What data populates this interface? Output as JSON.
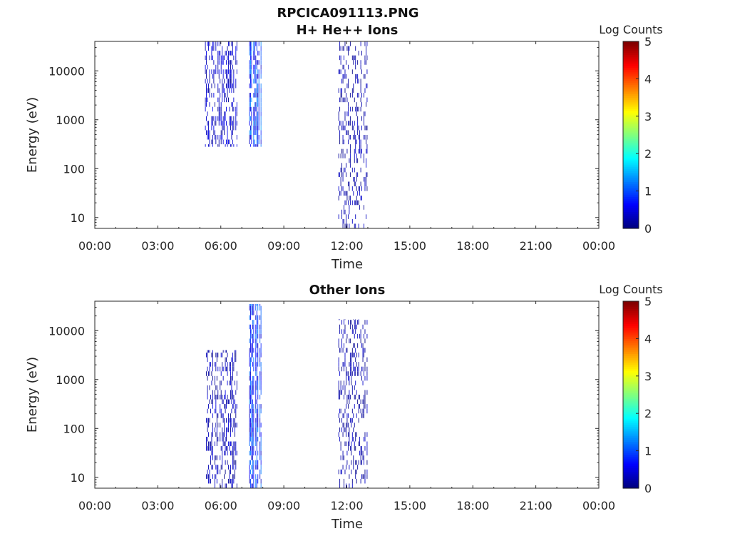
{
  "figure": {
    "title": "RPCICA091113.PNG"
  },
  "colormap": {
    "name": "jet",
    "stops": [
      "#00007f",
      "#0000ff",
      "#007fff",
      "#00ffff",
      "#7fff7f",
      "#ffff00",
      "#ff7f00",
      "#ff0000",
      "#7f0000"
    ]
  },
  "chart_data": [
    {
      "type": "heatmap",
      "title": "H+ He++ Ions",
      "xlabel": "Time",
      "ylabel": "Energy (eV)",
      "colorbar_label": "Log Counts",
      "xlim_hours": [
        0,
        24
      ],
      "xticks": [
        {
          "hour": 0,
          "label": "00:00"
        },
        {
          "hour": 3,
          "label": "03:00"
        },
        {
          "hour": 6,
          "label": "06:00"
        },
        {
          "hour": 9,
          "label": "09:00"
        },
        {
          "hour": 12,
          "label": "12:00"
        },
        {
          "hour": 15,
          "label": "15:00"
        },
        {
          "hour": 18,
          "label": "18:00"
        },
        {
          "hour": 21,
          "label": "21:00"
        },
        {
          "hour": 24,
          "label": "00:00"
        }
      ],
      "ylim_eV": [
        6,
        40000
      ],
      "yscale": "log",
      "yticks": [
        {
          "value": 10,
          "label": "10"
        },
        {
          "value": 100,
          "label": "100"
        },
        {
          "value": 1000,
          "label": "1000"
        },
        {
          "value": 10000,
          "label": "10000"
        }
      ],
      "clim": [
        0,
        5
      ],
      "cticks": [
        {
          "value": 0,
          "label": "0"
        },
        {
          "value": 1,
          "label": "1"
        },
        {
          "value": 2,
          "label": "2"
        },
        {
          "value": 3,
          "label": "3"
        },
        {
          "value": 4,
          "label": "4"
        },
        {
          "value": 5,
          "label": "5"
        }
      ],
      "blocks": [
        {
          "t": [
            5.25,
            6.75
          ],
          "e": [
            280,
            40000
          ],
          "level": [
            0.1,
            0.6
          ],
          "density": 0.45
        },
        {
          "t": [
            7.35,
            7.9
          ],
          "e": [
            280,
            40000
          ],
          "level": [
            0.3,
            1.4
          ],
          "density": 0.8
        },
        {
          "t": [
            11.6,
            13.0
          ],
          "e": [
            6,
            40000
          ],
          "level": [
            0.0,
            0.4
          ],
          "density": 0.3
        }
      ]
    },
    {
      "type": "heatmap",
      "title": "Other Ions",
      "xlabel": "Time",
      "ylabel": "Energy (eV)",
      "colorbar_label": "Log Counts",
      "xlim_hours": [
        0,
        24
      ],
      "xticks": [
        {
          "hour": 0,
          "label": "00:00"
        },
        {
          "hour": 3,
          "label": "03:00"
        },
        {
          "hour": 6,
          "label": "06:00"
        },
        {
          "hour": 9,
          "label": "09:00"
        },
        {
          "hour": 12,
          "label": "12:00"
        },
        {
          "hour": 15,
          "label": "15:00"
        },
        {
          "hour": 18,
          "label": "18:00"
        },
        {
          "hour": 21,
          "label": "21:00"
        },
        {
          "hour": 24,
          "label": "00:00"
        }
      ],
      "ylim_eV": [
        6,
        40000
      ],
      "yscale": "log",
      "yticks": [
        {
          "value": 10,
          "label": "10"
        },
        {
          "value": 100,
          "label": "100"
        },
        {
          "value": 1000,
          "label": "1000"
        },
        {
          "value": 10000,
          "label": "10000"
        }
      ],
      "clim": [
        0,
        5
      ],
      "cticks": [
        {
          "value": 0,
          "label": "0"
        },
        {
          "value": 1,
          "label": "1"
        },
        {
          "value": 2,
          "label": "2"
        },
        {
          "value": 3,
          "label": "3"
        },
        {
          "value": 4,
          "label": "4"
        },
        {
          "value": 5,
          "label": "5"
        }
      ],
      "blocks": [
        {
          "t": [
            5.25,
            6.75
          ],
          "e": [
            6,
            4000
          ],
          "level": [
            0.0,
            0.5
          ],
          "density": 0.4
        },
        {
          "t": [
            7.35,
            7.9
          ],
          "e": [
            6,
            35000
          ],
          "level": [
            0.3,
            1.3
          ],
          "density": 0.75
        },
        {
          "t": [
            11.6,
            13.0
          ],
          "e": [
            6,
            17000
          ],
          "level": [
            0.0,
            0.4
          ],
          "density": 0.3
        }
      ]
    }
  ]
}
